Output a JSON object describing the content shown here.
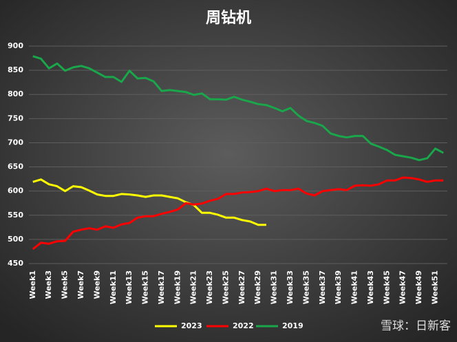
{
  "chart_data": {
    "type": "line",
    "title": "周钻机",
    "categories": [
      "Week1",
      null,
      "Week3",
      null,
      "Week5",
      null,
      "Week7",
      null,
      "Week9",
      null,
      "Week11",
      null,
      "Week13",
      null,
      "Week15",
      null,
      "Week17",
      null,
      "Week19",
      null,
      "Week21",
      null,
      "Week23",
      null,
      "Week25",
      null,
      "Week27",
      null,
      "Week29",
      null,
      "Week31",
      null,
      "Week33",
      null,
      "Week35",
      null,
      "Week37",
      null,
      "Week39",
      null,
      "Week41",
      null,
      "Week43",
      null,
      "Week45",
      null,
      "Week47",
      null,
      "Week49",
      null,
      "Week51",
      null
    ],
    "series": [
      {
        "name": "2023",
        "color": "#ffff00",
        "values": [
          619,
          624,
          614,
          610,
          600,
          610,
          608,
          601,
          593,
          590,
          590,
          594,
          593,
          591,
          588,
          591,
          591,
          588,
          585,
          577,
          571,
          555,
          555,
          551,
          545,
          545,
          540,
          537,
          530,
          530,
          null,
          null,
          null,
          null,
          null,
          null,
          null,
          null,
          null,
          null,
          null,
          null,
          null,
          null,
          null,
          null,
          null,
          null,
          null,
          null,
          null,
          null
        ]
      },
      {
        "name": "2022",
        "color": "#ff0000",
        "values": [
          480,
          493,
          491,
          496,
          497,
          516,
          520,
          523,
          520,
          527,
          524,
          531,
          534,
          545,
          548,
          548,
          553,
          557,
          562,
          575,
          572,
          574,
          580,
          584,
          594,
          594,
          597,
          598,
          600,
          605,
          600,
          602,
          602,
          605,
          595,
          591,
          600,
          602,
          604,
          602,
          611,
          612,
          611,
          614,
          622,
          622,
          628,
          627,
          624,
          619,
          622,
          622
        ]
      },
      {
        "name": "2019",
        "color": "#1aa64a",
        "values": [
          879,
          874,
          854,
          864,
          849,
          856,
          859,
          854,
          845,
          836,
          836,
          826,
          849,
          833,
          834,
          827,
          807,
          809,
          807,
          805,
          799,
          802,
          790,
          790,
          789,
          795,
          789,
          785,
          780,
          778,
          772,
          765,
          772,
          756,
          745,
          741,
          735,
          719,
          714,
          711,
          714,
          714,
          698,
          692,
          685,
          675,
          672,
          669,
          664,
          668,
          688,
          679
        ]
      }
    ],
    "ylim": [
      450,
      900
    ],
    "yticks": [
      450,
      500,
      550,
      600,
      650,
      700,
      750,
      800,
      850,
      900
    ],
    "grid": true,
    "legend": "bottom",
    "watermark": "雪球：日新客"
  }
}
